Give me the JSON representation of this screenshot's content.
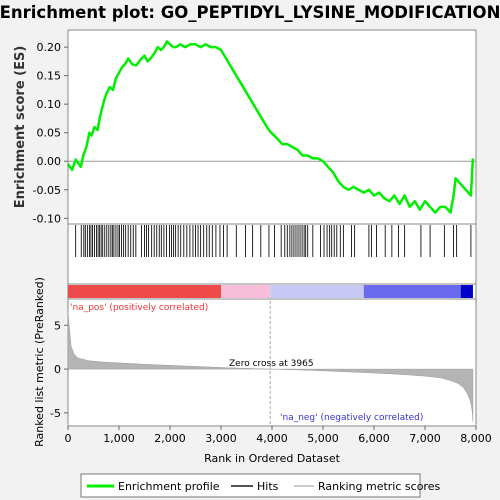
{
  "chart_data": {
    "type": "line",
    "title": "Enrichment plot: GO_PEPTIDYL_LYSINE_MODIFICATION",
    "es_panel": {
      "ylabel": "Enrichment score (ES)",
      "ylim": [
        -0.11,
        0.23
      ],
      "yticks": [
        "0.20",
        "0.15",
        "0.10",
        "0.05",
        "0.00",
        "-0.05",
        "-0.10"
      ],
      "ytick_values": [
        0.2,
        0.15,
        0.1,
        0.05,
        0.0,
        -0.05,
        -0.1
      ],
      "series": [
        {
          "name": "Enrichment profile",
          "color": "#00ee00",
          "x": [
            0,
            80,
            150,
            250,
            300,
            360,
            420,
            460,
            520,
            580,
            620,
            660,
            720,
            760,
            820,
            880,
            940,
            1000,
            1060,
            1120,
            1180,
            1260,
            1340,
            1420,
            1500,
            1560,
            1620,
            1700,
            1760,
            1820,
            1880,
            1940,
            2000,
            2060,
            2120,
            2200,
            2300,
            2400,
            2500,
            2600,
            2700,
            2800,
            2900,
            3000,
            3100,
            3200,
            3300,
            3400,
            3500,
            3600,
            3700,
            3800,
            3900,
            3965,
            4100,
            4200,
            4300,
            4400,
            4500,
            4600,
            4700,
            4800,
            4900,
            5000,
            5100,
            5200,
            5300,
            5400,
            5500,
            5600,
            5700,
            5800,
            5900,
            6000,
            6100,
            6200,
            6300,
            6400,
            6500,
            6600,
            6700,
            6800,
            6900,
            7000,
            7100,
            7200,
            7300,
            7400,
            7500,
            7560,
            7600,
            7650,
            7700,
            7800,
            7900,
            7940
          ],
          "values": [
            -0.005,
            -0.015,
            0.003,
            -0.01,
            0.01,
            0.025,
            0.05,
            0.045,
            0.06,
            0.055,
            0.075,
            0.09,
            0.11,
            0.12,
            0.13,
            0.125,
            0.145,
            0.155,
            0.165,
            0.17,
            0.18,
            0.17,
            0.168,
            0.178,
            0.185,
            0.175,
            0.18,
            0.19,
            0.2,
            0.195,
            0.2,
            0.21,
            0.205,
            0.2,
            0.2,
            0.205,
            0.2,
            0.205,
            0.205,
            0.2,
            0.205,
            0.2,
            0.2,
            0.195,
            0.18,
            0.165,
            0.15,
            0.135,
            0.12,
            0.105,
            0.09,
            0.075,
            0.06,
            0.052,
            0.04,
            0.03,
            0.03,
            0.025,
            0.02,
            0.01,
            0.01,
            0.005,
            0.005,
            0.0,
            -0.01,
            -0.02,
            -0.035,
            -0.045,
            -0.05,
            -0.045,
            -0.05,
            -0.055,
            -0.05,
            -0.06,
            -0.055,
            -0.065,
            -0.07,
            -0.06,
            -0.075,
            -0.06,
            -0.08,
            -0.07,
            -0.085,
            -0.07,
            -0.08,
            -0.09,
            -0.08,
            -0.08,
            -0.09,
            -0.06,
            -0.03,
            -0.035,
            -0.04,
            -0.05,
            -0.06,
            0.005
          ]
        }
      ]
    },
    "hits": {
      "name": "Hits",
      "positions": [
        150,
        260,
        310,
        340,
        380,
        420,
        450,
        480,
        520,
        560,
        590,
        620,
        650,
        680,
        720,
        760,
        800,
        840,
        870,
        900,
        940,
        980,
        1010,
        1050,
        1090,
        1130,
        1180,
        1230,
        1280,
        1330,
        1440,
        1500,
        1540,
        1580,
        1640,
        1690,
        1740,
        1790,
        1830,
        1880,
        1930,
        1990,
        2030,
        2070,
        2110,
        2160,
        2210,
        2270,
        2330,
        2390,
        2450,
        2500,
        2550,
        2600,
        2660,
        2720,
        2770,
        2830,
        2900,
        2980,
        3050,
        3120,
        3300,
        3480,
        3620,
        3780,
        3940,
        4050,
        4180,
        4250,
        4300,
        4350,
        4390,
        4430,
        4470,
        4510,
        4550,
        4590,
        4630,
        4660,
        4700,
        4800,
        4950,
        5020,
        5080,
        5130,
        5170,
        5220,
        5270,
        5340,
        5400,
        5560,
        5620,
        5900,
        5950,
        6050,
        6220,
        6350,
        6480,
        6600,
        6920,
        7100,
        7380,
        7560,
        7620,
        7900
      ]
    },
    "color_bar": {
      "name": "Ranking metric scores",
      "segments": [
        {
          "from": 0,
          "to": 3000,
          "color": "#ef4a4a"
        },
        {
          "from": 3000,
          "to": 3965,
          "color": "#f7bdd9"
        },
        {
          "from": 3965,
          "to": 5800,
          "color": "#c8c8f4"
        },
        {
          "from": 5800,
          "to": 7700,
          "color": "#6a6aee"
        },
        {
          "from": 7700,
          "to": 7940,
          "color": "#0000c8"
        }
      ]
    },
    "metric_panel": {
      "ylabel": "Ranked list metric (PreRanked)",
      "ylim": [
        -6.5,
        8.0
      ],
      "yticks": [
        "5",
        "0",
        "-5"
      ],
      "ytick_values": [
        5,
        0,
        -5
      ],
      "x": [
        0,
        20,
        60,
        120,
        200,
        400,
        700,
        1000,
        1500,
        2000,
        2500,
        3000,
        3500,
        3965,
        4500,
        5000,
        5500,
        6000,
        6500,
        7000,
        7300,
        7500,
        7650,
        7750,
        7820,
        7880,
        7910,
        7930,
        7940
      ],
      "values": [
        6.5,
        5.2,
        2.6,
        1.7,
        1.25,
        0.95,
        0.8,
        0.7,
        0.55,
        0.42,
        0.3,
        0.18,
        0.08,
        0.0,
        -0.1,
        -0.2,
        -0.32,
        -0.45,
        -0.6,
        -0.8,
        -1.0,
        -1.3,
        -1.65,
        -2.1,
        -2.7,
        -3.5,
        -4.2,
        -5.0,
        -6.0
      ]
    },
    "x_axis": {
      "label": "Rank in Ordered Dataset",
      "xlim": [
        0,
        8000
      ],
      "ticks": [
        "0",
        "1,000",
        "2,000",
        "3,000",
        "4,000",
        "5,000",
        "6,000",
        "7,000",
        "8,000"
      ],
      "tick_values": [
        0,
        1000,
        2000,
        3000,
        4000,
        5000,
        6000,
        7000,
        8000
      ]
    },
    "annotations": {
      "zero_cross_label": "Zero cross at 3965",
      "zero_cross": 3965,
      "pos_label": "'na_pos' (positively correlated)",
      "neg_label": "'na_neg' (negatively correlated)",
      "pos_color": "#ee3333",
      "neg_color": "#3333cc"
    },
    "legend": {
      "placement": "bottom",
      "entries": [
        {
          "label": "Enrichment profile",
          "color": "#00ee00"
        },
        {
          "label": "Hits",
          "color": "#555555"
        },
        {
          "label": "Ranking metric scores",
          "color": "#bbbbbb"
        }
      ]
    }
  }
}
